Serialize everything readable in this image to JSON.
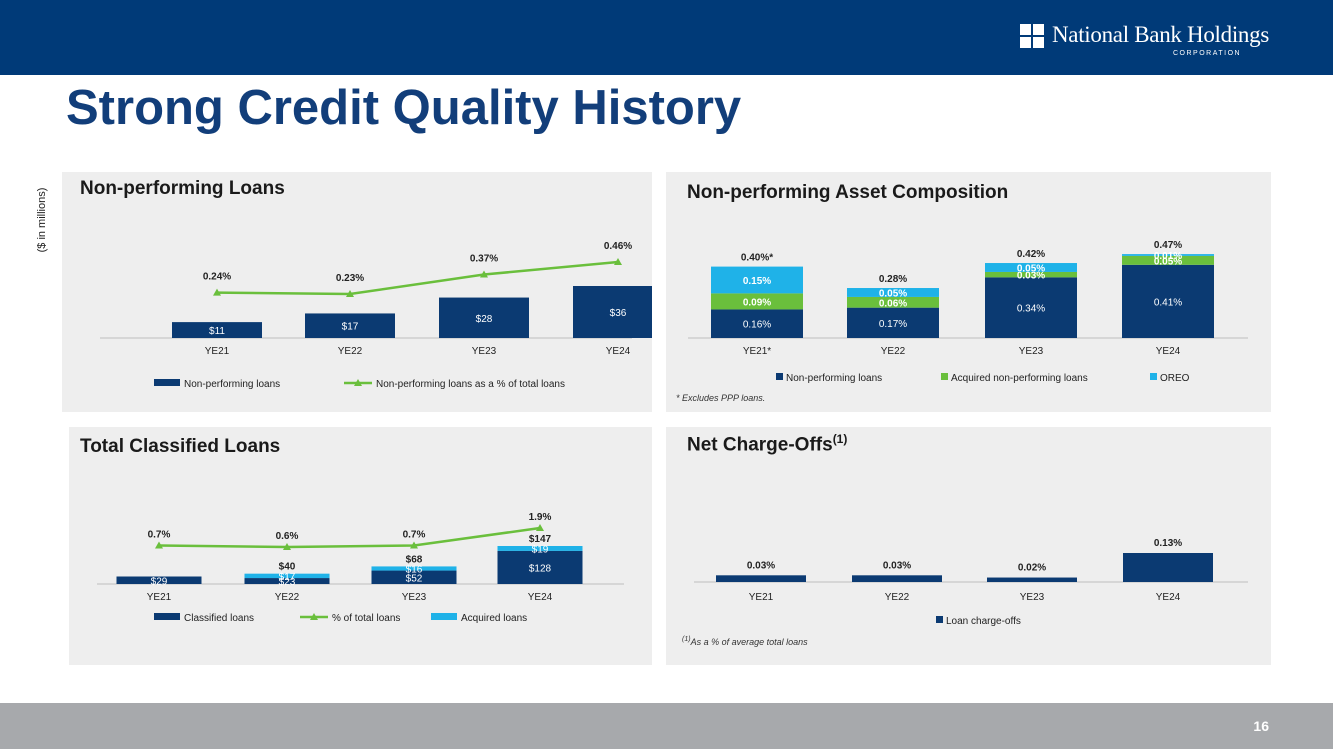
{
  "header": {
    "logo_name": "National Bank Holdings",
    "logo_sub": "CORPORATION"
  },
  "page_title": "Strong Credit Quality History",
  "units_label": "($ in millions)",
  "page_number": "16",
  "colors": {
    "navy": "#0b3a72",
    "green": "#6abf3c",
    "cyan": "#1fb2e8",
    "panel": "#eeeeee",
    "header": "#003a78"
  },
  "panels": {
    "npl": {
      "title": "Non-performing Loans"
    },
    "npa": {
      "title": "Non-performing Asset Composition",
      "note": "* Excludes PPP loans."
    },
    "tcl": {
      "title": "Total Classified Loans"
    },
    "nco": {
      "title": "Net Charge-Offs",
      "title_sup": "(1)",
      "note_sup": "(1)",
      "note": "As a % of average total loans"
    }
  },
  "chart_data": [
    {
      "id": "npl",
      "type": "bar",
      "title": "Non-performing Loans",
      "categories": [
        "YE21",
        "YE22",
        "YE23",
        "YE24"
      ],
      "series": [
        {
          "name": "Non-performing loans",
          "kind": "bar",
          "values": [
            11,
            17,
            28,
            36
          ],
          "labels": [
            "$11",
            "$17",
            "$28",
            "$36"
          ]
        },
        {
          "name": "Non-performing loans as a % of total loans",
          "kind": "line",
          "values": [
            0.24,
            0.23,
            0.37,
            0.46
          ],
          "labels": [
            "0.24%",
            "0.23%",
            "0.37%",
            "0.46%"
          ]
        }
      ],
      "legend": [
        "Non-performing loans",
        "Non-performing loans as a % of total loans"
      ]
    },
    {
      "id": "npa",
      "type": "bar",
      "stacked": true,
      "title": "Non-performing Asset Composition",
      "categories": [
        "YE21*",
        "YE22",
        "YE23",
        "YE24"
      ],
      "series": [
        {
          "name": "Non-performing loans",
          "values": [
            0.16,
            0.17,
            0.34,
            0.41
          ],
          "labels": [
            "0.16%",
            "0.17%",
            "0.34%",
            "0.41%"
          ]
        },
        {
          "name": "Acquired non-performing loans",
          "values": [
            0.09,
            0.06,
            0.03,
            0.05
          ],
          "labels": [
            "0.09%",
            "0.06%",
            "0.03%",
            "0.05%"
          ]
        },
        {
          "name": "OREO",
          "values": [
            0.15,
            0.05,
            0.05,
            0.01
          ],
          "labels": [
            "0.15%",
            "0.05%",
            "0.05%",
            "0.01%"
          ]
        }
      ],
      "totals": [
        "0.40%*",
        "0.28%",
        "0.42%",
        "0.47%"
      ],
      "legend": [
        "Non-performing loans",
        "Acquired non-performing loans",
        "OREO"
      ]
    },
    {
      "id": "tcl",
      "type": "bar",
      "stacked": true,
      "title": "Total Classified Loans",
      "categories": [
        "YE21",
        "YE22",
        "YE23",
        "YE24"
      ],
      "series": [
        {
          "name": "Classified loans",
          "kind": "bar",
          "values": [
            29,
            23,
            52,
            128
          ],
          "labels": [
            "$29",
            "$23",
            "$52",
            "$128"
          ]
        },
        {
          "name": "Acquired loans",
          "kind": "bar",
          "values": [
            0,
            17,
            16,
            19
          ],
          "labels": [
            "",
            "$17",
            "$16",
            "$19"
          ]
        },
        {
          "name": "% of total loans",
          "kind": "line",
          "values": [
            0.7,
            0.6,
            0.7,
            1.9
          ],
          "labels": [
            "0.7%",
            "0.6%",
            "0.7%",
            "1.9%"
          ]
        }
      ],
      "totals": [
        "",
        "$40",
        "$68",
        "$147"
      ],
      "legend": [
        "Classified loans",
        "% of total loans",
        "Acquired loans"
      ]
    },
    {
      "id": "nco",
      "type": "bar",
      "title": "Net Charge-Offs",
      "categories": [
        "YE21",
        "YE22",
        "YE23",
        "YE24"
      ],
      "series": [
        {
          "name": "Loan charge-offs",
          "values": [
            0.03,
            0.03,
            0.02,
            0.13
          ],
          "labels": [
            "0.03%",
            "0.03%",
            "0.02%",
            "0.13%"
          ]
        }
      ],
      "legend": [
        "Loan charge-offs"
      ]
    }
  ]
}
